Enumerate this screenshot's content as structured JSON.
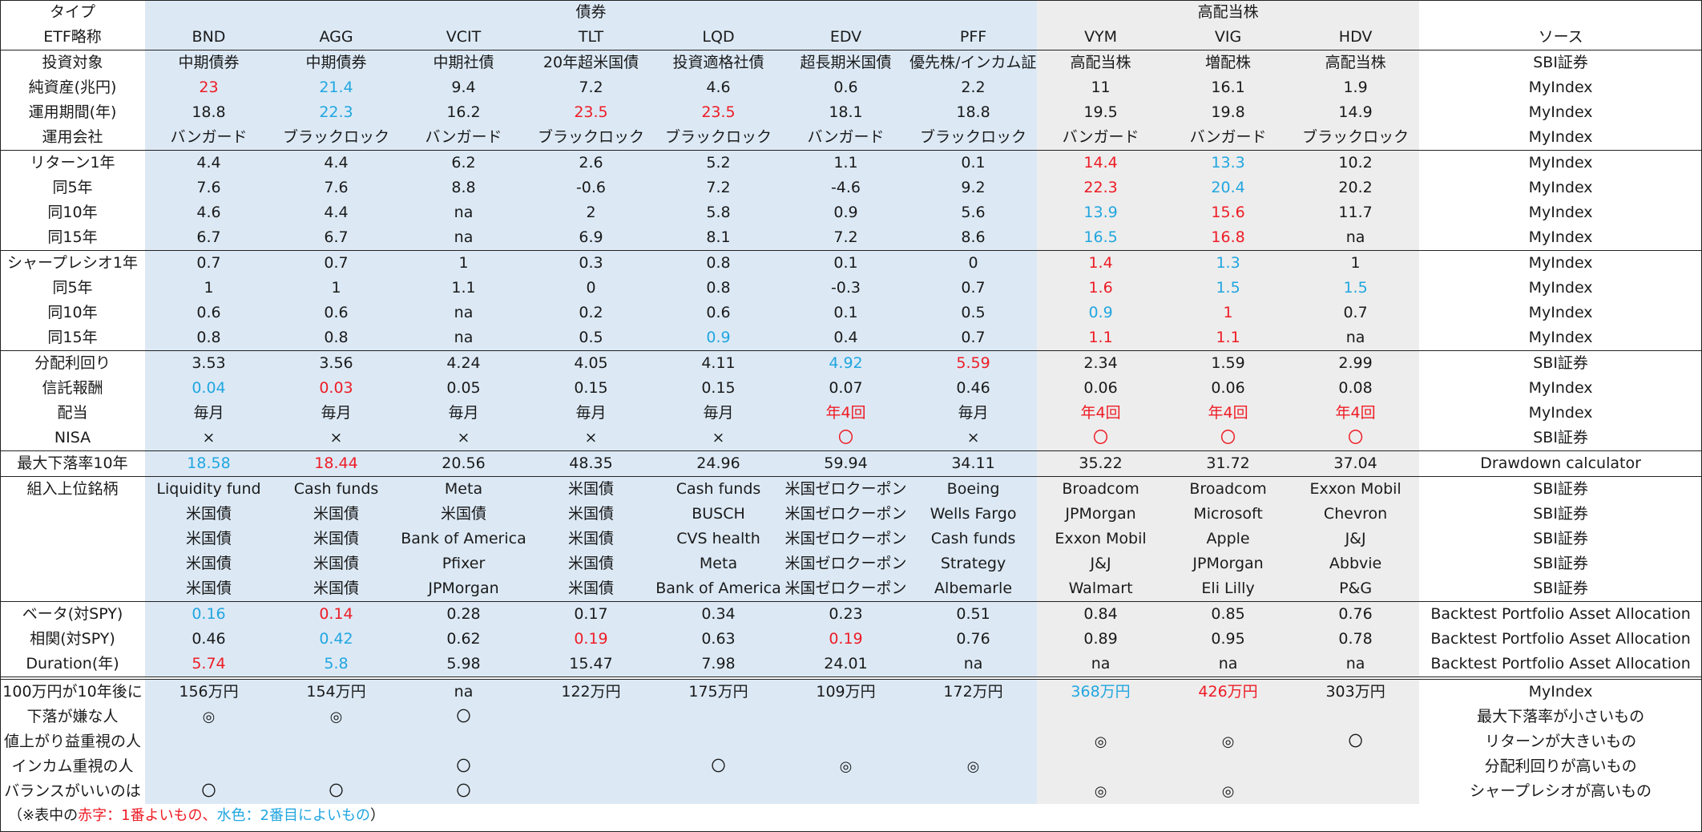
{
  "header": {
    "type_label": "タイプ",
    "group_bonds": "債券",
    "group_dividend": "高配当株",
    "etf_label": "ETF略称",
    "source_label": "ソース"
  },
  "tickers": [
    "BND",
    "AGG",
    "VCIT",
    "TLT",
    "LQD",
    "EDV",
    "PFF",
    "VYM",
    "VIG",
    "HDV"
  ],
  "highlight_colors": {
    "best": "#ee1c25",
    "second": "#21a6e0"
  },
  "rows": [
    {
      "label": "投資対象",
      "values": [
        "中期債券",
        "中期債券",
        "中期社債",
        "20年超米国債",
        "投資適格社債",
        "超長期米国債",
        "優先株/インカム証券",
        "高配当株",
        "増配株",
        "高配当株"
      ],
      "hl": [
        "",
        "",
        "",
        "",
        "",
        "",
        "",
        "",
        "",
        ""
      ],
      "source": "SBI証券",
      "line": "top"
    },
    {
      "label": "純資産(兆円)",
      "values": [
        "23",
        "21.4",
        "9.4",
        "7.2",
        "4.6",
        "0.6",
        "2.2",
        "11",
        "16.1",
        "1.9"
      ],
      "hl": [
        "r",
        "c",
        "",
        "",
        "",
        "",
        "",
        "",
        "",
        ""
      ],
      "source": "MyIndex"
    },
    {
      "label": "運用期間(年)",
      "values": [
        "18.8",
        "22.3",
        "16.2",
        "23.5",
        "23.5",
        "18.1",
        "18.8",
        "19.5",
        "19.8",
        "14.9"
      ],
      "hl": [
        "",
        "c",
        "",
        "r",
        "r",
        "",
        "",
        "",
        "",
        ""
      ],
      "source": "MyIndex"
    },
    {
      "label": "運用会社",
      "values": [
        "バンガード",
        "ブラックロック",
        "バンガード",
        "ブラックロック",
        "ブラックロック",
        "バンガード",
        "ブラックロック",
        "バンガード",
        "バンガード",
        "ブラックロック"
      ],
      "hl": [
        "",
        "",
        "",
        "",
        "",
        "",
        "",
        "",
        "",
        ""
      ],
      "source": "MyIndex",
      "line": "bottom"
    },
    {
      "label": "リターン1年",
      "values": [
        "4.4",
        "4.4",
        "6.2",
        "2.6",
        "5.2",
        "1.1",
        "0.1",
        "14.4",
        "13.3",
        "10.2"
      ],
      "hl": [
        "",
        "",
        "",
        "",
        "",
        "",
        "",
        "r",
        "c",
        ""
      ],
      "source": "MyIndex"
    },
    {
      "label": "同5年",
      "values": [
        "7.6",
        "7.6",
        "8.8",
        "-0.6",
        "7.2",
        "-4.6",
        "9.2",
        "22.3",
        "20.4",
        "20.2"
      ],
      "hl": [
        "",
        "",
        "",
        "",
        "",
        "",
        "",
        "r",
        "c",
        ""
      ],
      "source": "MyIndex"
    },
    {
      "label": "同10年",
      "values": [
        "4.6",
        "4.4",
        "na",
        "2",
        "5.8",
        "0.9",
        "5.6",
        "13.9",
        "15.6",
        "11.7"
      ],
      "hl": [
        "",
        "",
        "",
        "",
        "",
        "",
        "",
        "c",
        "r",
        ""
      ],
      "source": "MyIndex"
    },
    {
      "label": "同15年",
      "values": [
        "6.7",
        "6.7",
        "na",
        "6.9",
        "8.1",
        "7.2",
        "8.6",
        "16.5",
        "16.8",
        "na"
      ],
      "hl": [
        "",
        "",
        "",
        "",
        "",
        "",
        "",
        "c",
        "r",
        ""
      ],
      "source": "MyIndex",
      "line": "bottom"
    },
    {
      "label": "シャープレシオ1年",
      "values": [
        "0.7",
        "0.7",
        "1",
        "0.3",
        "0.8",
        "0.1",
        "0",
        "1.4",
        "1.3",
        "1"
      ],
      "hl": [
        "",
        "",
        "",
        "",
        "",
        "",
        "",
        "r",
        "c",
        ""
      ],
      "source": "MyIndex"
    },
    {
      "label": "同5年",
      "values": [
        "1",
        "1",
        "1.1",
        "0",
        "0.8",
        "-0.3",
        "0.7",
        "1.6",
        "1.5",
        "1.5"
      ],
      "hl": [
        "",
        "",
        "",
        "",
        "",
        "",
        "",
        "r",
        "c",
        "c"
      ],
      "source": "MyIndex"
    },
    {
      "label": "同10年",
      "values": [
        "0.6",
        "0.6",
        "na",
        "0.2",
        "0.6",
        "0.1",
        "0.5",
        "0.9",
        "1",
        "0.7"
      ],
      "hl": [
        "",
        "",
        "",
        "",
        "",
        "",
        "",
        "c",
        "r",
        ""
      ],
      "source": "MyIndex"
    },
    {
      "label": "同15年",
      "values": [
        "0.8",
        "0.8",
        "na",
        "0.5",
        "0.9",
        "0.4",
        "0.7",
        "1.1",
        "1.1",
        "na"
      ],
      "hl": [
        "",
        "",
        "",
        "",
        "c",
        "",
        "",
        "r",
        "r",
        ""
      ],
      "source": "MyIndex",
      "line": "bottom"
    },
    {
      "label": "分配利回り",
      "values": [
        "3.53",
        "3.56",
        "4.24",
        "4.05",
        "4.11",
        "4.92",
        "5.59",
        "2.34",
        "1.59",
        "2.99"
      ],
      "hl": [
        "",
        "",
        "",
        "",
        "",
        "c",
        "r",
        "",
        "",
        ""
      ],
      "source": "SBI証券"
    },
    {
      "label": "信託報酬",
      "values": [
        "0.04",
        "0.03",
        "0.05",
        "0.15",
        "0.15",
        "0.07",
        "0.46",
        "0.06",
        "0.06",
        "0.08"
      ],
      "hl": [
        "c",
        "r",
        "",
        "",
        "",
        "",
        "",
        "",
        "",
        ""
      ],
      "source": "MyIndex"
    },
    {
      "label": "配当",
      "values": [
        "毎月",
        "毎月",
        "毎月",
        "毎月",
        "毎月",
        "年4回",
        "毎月",
        "年4回",
        "年4回",
        "年4回"
      ],
      "hl": [
        "",
        "",
        "",
        "",
        "",
        "r",
        "",
        "r",
        "r",
        "r"
      ],
      "source": "MyIndex"
    },
    {
      "label": "NISA",
      "values": [
        "×",
        "×",
        "×",
        "×",
        "×",
        "〇",
        "×",
        "〇",
        "〇",
        "〇"
      ],
      "hl": [
        "",
        "",
        "",
        "",
        "",
        "r",
        "",
        "r",
        "r",
        "r"
      ],
      "source": "SBI証券",
      "line": "bottom"
    },
    {
      "label": "最大下落率10年",
      "values": [
        "18.58",
        "18.44",
        "20.56",
        "48.35",
        "24.96",
        "59.94",
        "34.11",
        "35.22",
        "31.72",
        "37.04"
      ],
      "hl": [
        "c",
        "r",
        "",
        "",
        "",
        "",
        "",
        "",
        "",
        ""
      ],
      "source": "Drawdown calculator",
      "line": "bottom"
    },
    {
      "label": "組入上位銘柄",
      "values": [
        "Liquidity fund",
        "Cash funds",
        "Meta",
        "米国債",
        "Cash funds",
        "米国ゼロクーポン",
        "Boeing",
        "Broadcom",
        "Broadcom",
        "Exxon Mobil"
      ],
      "hl": [
        "",
        "",
        "",
        "",
        "",
        "",
        "",
        "",
        "",
        ""
      ],
      "source": "SBI証券"
    },
    {
      "label": "",
      "values": [
        "米国債",
        "米国債",
        "米国債",
        "米国債",
        "BUSCH",
        "米国ゼロクーポン",
        "Wells Fargo",
        "JPMorgan",
        "Microsoft",
        "Chevron"
      ],
      "hl": [
        "",
        "",
        "",
        "",
        "",
        "",
        "",
        "",
        "",
        ""
      ],
      "source": "SBI証券"
    },
    {
      "label": "",
      "values": [
        "米国債",
        "米国債",
        "Bank of America",
        "米国債",
        "CVS health",
        "米国ゼロクーポン",
        "Cash funds",
        "Exxon Mobil",
        "Apple",
        "J&J"
      ],
      "hl": [
        "",
        "",
        "",
        "",
        "",
        "",
        "",
        "",
        "",
        ""
      ],
      "source": "SBI証券"
    },
    {
      "label": "",
      "values": [
        "米国債",
        "米国債",
        "Pfixer",
        "米国債",
        "Meta",
        "米国ゼロクーポン",
        "Strategy",
        "J&J",
        "JPMorgan",
        "Abbvie"
      ],
      "hl": [
        "",
        "",
        "",
        "",
        "",
        "",
        "",
        "",
        "",
        ""
      ],
      "source": "SBI証券"
    },
    {
      "label": "",
      "values": [
        "米国債",
        "米国債",
        "JPMorgan",
        "米国債",
        "Bank of America",
        "米国ゼロクーポン",
        "Albemarle",
        "Walmart",
        "Eli Lilly",
        "P&G"
      ],
      "hl": [
        "",
        "",
        "",
        "",
        "",
        "",
        "",
        "",
        "",
        ""
      ],
      "source": "SBI証券",
      "line": "bottom"
    },
    {
      "label": "ベータ(対SPY)",
      "values": [
        "0.16",
        "0.14",
        "0.28",
        "0.17",
        "0.34",
        "0.23",
        "0.51",
        "0.84",
        "0.85",
        "0.76"
      ],
      "hl": [
        "c",
        "r",
        "",
        "",
        "",
        "",
        "",
        "",
        "",
        ""
      ],
      "source": "Backtest Portfolio Asset Allocation"
    },
    {
      "label": "相関(対SPY)",
      "values": [
        "0.46",
        "0.42",
        "0.62",
        "0.19",
        "0.63",
        "0.19",
        "0.76",
        "0.89",
        "0.95",
        "0.78"
      ],
      "hl": [
        "",
        "c",
        "",
        "r",
        "",
        "r",
        "",
        "",
        "",
        ""
      ],
      "source": "Backtest Portfolio Asset Allocation"
    },
    {
      "label": "Duration(年)",
      "values": [
        "5.74",
        "5.8",
        "5.98",
        "15.47",
        "7.98",
        "24.01",
        "na",
        "na",
        "na",
        "na"
      ],
      "hl": [
        "r",
        "c",
        "",
        "",
        "",
        "",
        "",
        "",
        "",
        ""
      ],
      "source": "Backtest Portfolio Asset Allocation",
      "line": "bottom"
    },
    {
      "label": "100万円が10年後に",
      "values": [
        "156万円",
        "154万円",
        "na",
        "122万円",
        "175万円",
        "109万円",
        "172万円",
        "368万円",
        "426万円",
        "303万円"
      ],
      "hl": [
        "",
        "",
        "",
        "",
        "",
        "",
        "",
        "c",
        "r",
        ""
      ],
      "source": "MyIndex",
      "line": "double"
    },
    {
      "label": "下落が嫌な人",
      "values": [
        "◎",
        "◎",
        "〇",
        "",
        "",
        "",
        "",
        "",
        "",
        ""
      ],
      "hl": [
        "",
        "",
        "",
        "",
        "",
        "",
        "",
        "",
        "",
        ""
      ],
      "source": "最大下落率が小さいもの",
      "sym": true
    },
    {
      "label": "値上がり益重視の人",
      "values": [
        "",
        "",
        "",
        "",
        "",
        "",
        "",
        "◎",
        "◎",
        "〇"
      ],
      "hl": [
        "",
        "",
        "",
        "",
        "",
        "",
        "",
        "",
        "",
        ""
      ],
      "source": "リターンが大きいもの",
      "sym": true
    },
    {
      "label": "インカム重視の人",
      "values": [
        "",
        "",
        "〇",
        "",
        "〇",
        "◎",
        "◎",
        "",
        "",
        ""
      ],
      "hl": [
        "",
        "",
        "",
        "",
        "",
        "",
        "",
        "",
        "",
        ""
      ],
      "source": "分配利回りが高いもの",
      "sym": true
    },
    {
      "label": "バランスがいいのは",
      "values": [
        "〇",
        "〇",
        "〇",
        "",
        "",
        "",
        "",
        "◎",
        "◎",
        ""
      ],
      "hl": [
        "",
        "",
        "",
        "",
        "",
        "",
        "",
        "",
        "",
        ""
      ],
      "source": "シャープレシオが高いもの",
      "sym": true
    }
  ],
  "note": {
    "prefix": "（※表中の",
    "red_label": "赤字：1番よいもの、",
    "cyan_label": "水色：2番目によいもの",
    "suffix": "）"
  }
}
